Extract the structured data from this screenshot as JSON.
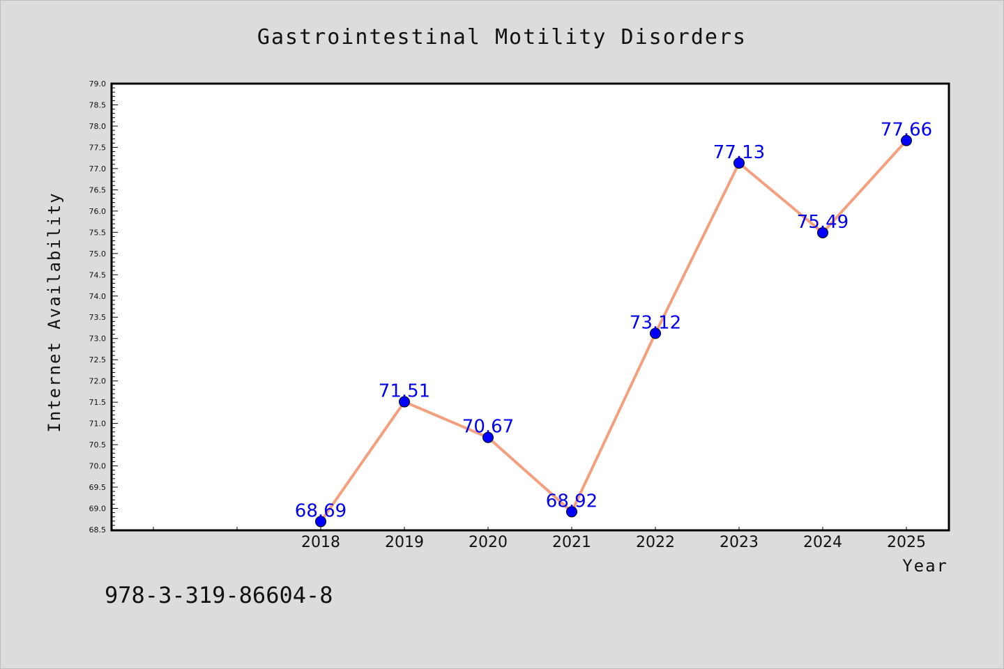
{
  "chart_data": {
    "type": "line",
    "title": "Gastrointestinal Motility Disorders",
    "xlabel": "Year",
    "ylabel": "Internet Availability",
    "x": [
      "2018",
      "2019",
      "2020",
      "2021",
      "2022",
      "2023",
      "2024",
      "2025"
    ],
    "series": [
      {
        "values": [
          68.69,
          71.51,
          70.67,
          68.92,
          73.12,
          77.13,
          75.49,
          77.66
        ],
        "labels": [
          "68.69",
          "71.51",
          "70.67",
          "68.92",
          "73.12",
          "77.13",
          "75.49",
          "77.66"
        ]
      }
    ],
    "ylim": [
      68.5,
      79.0
    ],
    "ytick_step": 0.5,
    "grid": false,
    "legend": "none",
    "colors": {
      "line": "#f4a07e",
      "marker": "#0000ff",
      "data_label": "#0000ee",
      "background": "#dcdcdc",
      "plot_background": "#ffffff"
    }
  },
  "footer": {
    "id_text": "978-3-319-86604-8"
  }
}
